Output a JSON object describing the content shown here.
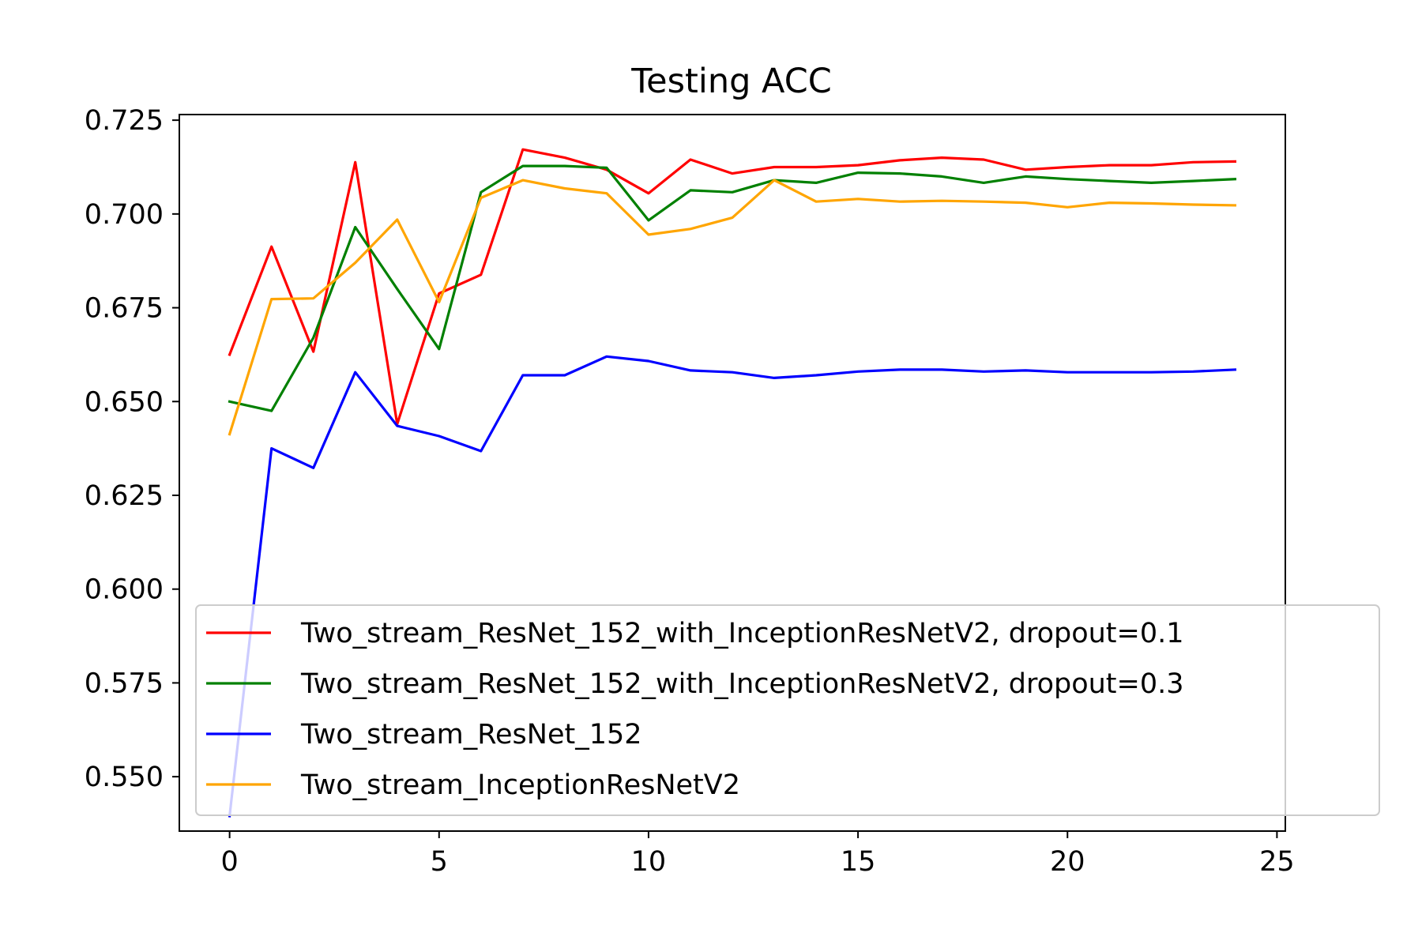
{
  "chart_data": {
    "type": "line",
    "title": "Testing ACC",
    "xlabel": "",
    "ylabel": "",
    "xlim": [
      -1.2,
      25.2
    ],
    "ylim": [
      0.5355,
      0.7265
    ],
    "xticks": [
      0,
      5,
      10,
      15,
      20,
      25
    ],
    "xtick_labels": [
      "0",
      "5",
      "10",
      "15",
      "20",
      "25"
    ],
    "yticks": [
      0.55,
      0.575,
      0.6,
      0.625,
      0.65,
      0.675,
      0.7,
      0.725
    ],
    "ytick_labels": [
      "0.550",
      "0.575",
      "0.600",
      "0.625",
      "0.650",
      "0.675",
      "0.700",
      "0.725"
    ],
    "grid": false,
    "legend_position": "lower-right",
    "x": [
      0,
      1,
      2,
      3,
      4,
      5,
      6,
      7,
      8,
      9,
      10,
      11,
      12,
      13,
      14,
      15,
      16,
      17,
      18,
      19,
      20,
      21,
      22,
      23,
      24
    ],
    "series": [
      {
        "name": "Two_stream_ResNet_152_with_InceptionResNetV2, dropout=0.1",
        "color": "#ff0000",
        "values": [
          0.6625,
          0.6913,
          0.6633,
          0.7138,
          0.644,
          0.6788,
          0.6838,
          0.7172,
          0.715,
          0.7118,
          0.7055,
          0.7145,
          0.7108,
          0.7125,
          0.7125,
          0.713,
          0.7143,
          0.715,
          0.7145,
          0.7118,
          0.7125,
          0.713,
          0.713,
          0.7138,
          0.714
        ]
      },
      {
        "name": "Two_stream_ResNet_152_with_InceptionResNetV2, dropout=0.3",
        "color": "#008000",
        "values": [
          0.65,
          0.6475,
          0.667,
          0.6965,
          0.68,
          0.664,
          0.7058,
          0.7128,
          0.7128,
          0.7123,
          0.6983,
          0.7063,
          0.7058,
          0.709,
          0.7083,
          0.711,
          0.7108,
          0.71,
          0.7083,
          0.71,
          0.7093,
          0.7088,
          0.7083,
          0.7088,
          0.7093
        ]
      },
      {
        "name": "Two_stream_ResNet_152",
        "color": "#0000ff",
        "values": [
          0.5395,
          0.6375,
          0.6323,
          0.6578,
          0.6435,
          0.6408,
          0.6368,
          0.657,
          0.657,
          0.662,
          0.6608,
          0.6583,
          0.6578,
          0.6563,
          0.657,
          0.658,
          0.6585,
          0.6585,
          0.658,
          0.6583,
          0.6578,
          0.6578,
          0.6578,
          0.658,
          0.6585
        ]
      },
      {
        "name": "Two_stream_InceptionResNetV2",
        "color": "#ffa500",
        "values": [
          0.6413,
          0.6773,
          0.6775,
          0.687,
          0.6985,
          0.6765,
          0.7043,
          0.709,
          0.7068,
          0.7055,
          0.6945,
          0.696,
          0.699,
          0.709,
          0.7033,
          0.704,
          0.7033,
          0.7035,
          0.7033,
          0.703,
          0.7018,
          0.703,
          0.7028,
          0.7025,
          0.7023
        ]
      }
    ]
  }
}
